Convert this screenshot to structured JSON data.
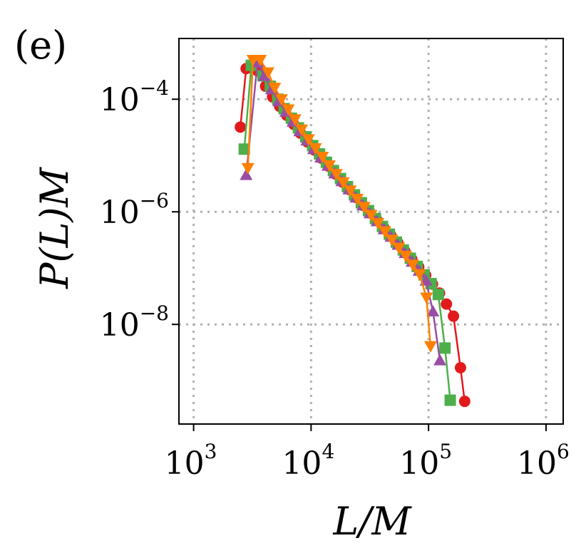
{
  "panel_label": "(e)",
  "chart_data": {
    "type": "line",
    "xscale": "log",
    "yscale": "log",
    "xlabel": "L/M",
    "ylabel": "P(L)M",
    "xlim": [
      750,
      1400000
    ],
    "ylim": [
      1.7e-10,
      0.0012
    ],
    "grid": true,
    "legend": "none",
    "x_ticks": [
      {
        "value": 1000,
        "base": "10",
        "exp": "3"
      },
      {
        "value": 10000,
        "base": "10",
        "exp": "4"
      },
      {
        "value": 100000,
        "base": "10",
        "exp": "5"
      },
      {
        "value": 1000000,
        "base": "10",
        "exp": "6"
      }
    ],
    "y_ticks": [
      {
        "value": 0.0001,
        "base": "10",
        "exp": "−4"
      },
      {
        "value": 1e-06,
        "base": "10",
        "exp": "−6"
      },
      {
        "value": 1e-08,
        "base": "10",
        "exp": "−8"
      }
    ],
    "series": [
      {
        "name": "red",
        "color": "#e31a1c",
        "marker": "circle",
        "x": [
          2500,
          2800,
          3500,
          4100,
          4700,
          5400,
          6200,
          7100,
          8100,
          9300,
          10700,
          12200,
          14000,
          16100,
          18400,
          21100,
          24200,
          27700,
          31800,
          36400,
          41700,
          47800,
          54800,
          62800,
          72000,
          82500,
          94500,
          108000,
          124000,
          142000,
          163000,
          187000,
          203000
        ],
        "y": [
          3.2e-05,
          0.00035,
          0.00032,
          0.00017,
          0.00011,
          7.5e-05,
          5.2e-05,
          3.6e-05,
          2.5e-05,
          1.75e-05,
          1.25e-05,
          9e-06,
          6.5e-06,
          4.7e-06,
          3.4e-06,
          2.5e-06,
          1.8e-06,
          1.3e-06,
          9.6e-07,
          7.1e-07,
          5.2e-07,
          3.8e-07,
          2.8e-07,
          2e-07,
          1.45e-07,
          1.05e-07,
          7.5e-08,
          5.2e-08,
          3.6e-08,
          2.3e-08,
          1.4e-08,
          1.7e-09,
          4.3e-10
        ]
      },
      {
        "name": "green",
        "color": "#4daf4a",
        "marker": "square",
        "x": [
          2700,
          3100,
          3900,
          4500,
          5200,
          5900,
          6800,
          7800,
          9000,
          10300,
          11800,
          13500,
          15500,
          17800,
          20400,
          23400,
          26800,
          30800,
          35300,
          40500,
          46400,
          53200,
          61000,
          69900,
          80100,
          91800,
          105000,
          121000,
          138000,
          153000
        ],
        "y": [
          1.3e-05,
          0.0004,
          0.00026,
          0.00017,
          0.0001,
          6.8e-05,
          4.6e-05,
          3.1e-05,
          2.15e-05,
          1.5e-05,
          1.07e-05,
          7.6e-06,
          5.4e-06,
          3.9e-06,
          2.8e-06,
          2e-06,
          1.45e-06,
          1.05e-06,
          7.6e-07,
          5.5e-07,
          4e-07,
          2.9e-07,
          2.1e-07,
          1.5e-07,
          1.07e-07,
          7.6e-08,
          5.3e-08,
          3.4e-08,
          3.8e-09,
          4.5e-10
        ]
      },
      {
        "name": "purple",
        "color": "#984ea3",
        "marker": "triangle-up",
        "x": [
          2800,
          3500,
          4000,
          4600,
          5300,
          6100,
          7000,
          8000,
          9200,
          10500,
          12100,
          13900,
          15900,
          18300,
          21000,
          24100,
          27600,
          31700,
          36400,
          41800,
          47900,
          55000,
          63100,
          72400,
          83000,
          95200,
          109000,
          125000
        ],
        "y": [
          4.5e-06,
          0.00045,
          0.00026,
          0.00015,
          9.2e-05,
          6e-05,
          4e-05,
          2.7e-05,
          1.85e-05,
          1.3e-05,
          9.2e-06,
          6.6e-06,
          4.8e-06,
          3.5e-06,
          2.5e-06,
          1.8e-06,
          1.3e-06,
          9.4e-07,
          6.8e-07,
          4.9e-07,
          3.6e-07,
          2.6e-07,
          1.85e-07,
          1.3e-07,
          9e-08,
          6e-08,
          1.7e-08,
          2.3e-09
        ]
      },
      {
        "name": "orange",
        "color": "#ff7f00",
        "marker": "triangle-down",
        "x": [
          2900,
          3200,
          3700,
          4300,
          4900,
          5600,
          6400,
          7300,
          8300,
          9500,
          10900,
          12500,
          14300,
          16400,
          18800,
          21600,
          24700,
          28300,
          32400,
          37100,
          42500,
          48700,
          55800,
          63900,
          73200,
          83800,
          96000,
          104000
        ],
        "y": [
          6e-06,
          0.0005,
          0.0005,
          0.0003,
          0.00016,
          0.0001,
          6.6e-05,
          4.4e-05,
          2.9e-05,
          1.95e-05,
          1.35e-05,
          9.5e-06,
          6.7e-06,
          4.7e-06,
          3.35e-06,
          2.4e-06,
          1.7e-06,
          1.22e-06,
          8.8e-07,
          6.3e-07,
          4.5e-07,
          3.2e-07,
          2.3e-07,
          1.65e-07,
          1.15e-07,
          7.8e-08,
          3e-08,
          4.1e-09
        ]
      }
    ]
  }
}
